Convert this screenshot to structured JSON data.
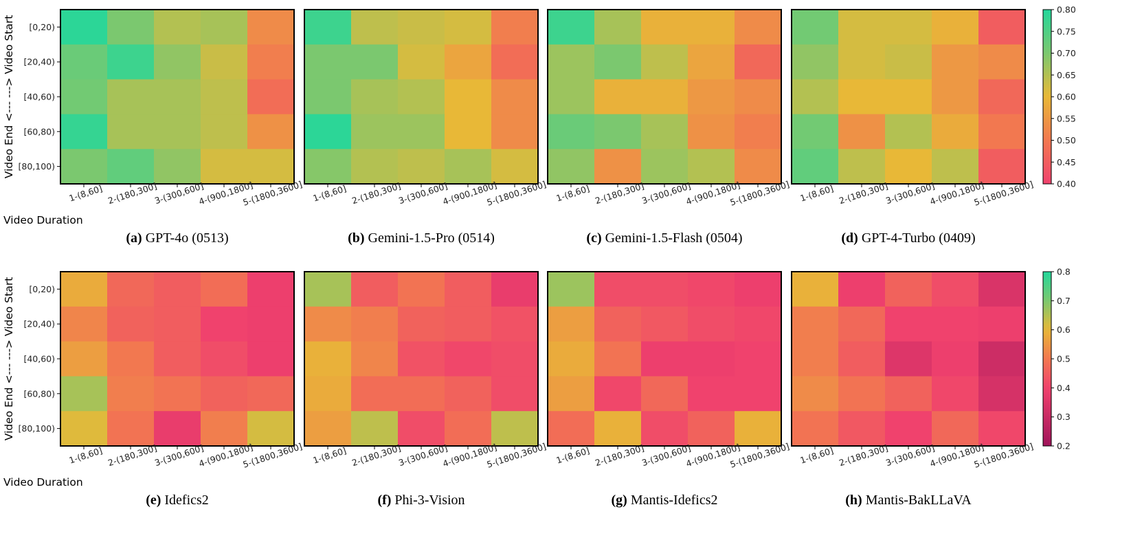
{
  "chart_data": {
    "type": "heatmap",
    "x_axis_label": "Video Duration",
    "y_axis_label": "Video End <--- ---> Video Start",
    "x_categories": [
      "1-(8,60]",
      "2-(180,300]",
      "3-(300,600]",
      "4-(900,1800]",
      "5-(1800,3600]"
    ],
    "y_categories": [
      "[0,20)",
      "[20,40)",
      "[40,60)",
      "[60,80)",
      "[80,100)"
    ],
    "colorbars": [
      {
        "row": 0,
        "vmin": 0.4,
        "vmax": 0.8,
        "ticks": [
          "0.80",
          "0.75",
          "0.70",
          "0.65",
          "0.60",
          "0.55",
          "0.50",
          "0.45",
          "0.40"
        ]
      },
      {
        "row": 1,
        "vmin": 0.2,
        "vmax": 0.8,
        "ticks": [
          "0.8",
          "0.7",
          "0.6",
          "0.5",
          "0.4",
          "0.3",
          "0.2"
        ]
      }
    ],
    "panels": [
      {
        "tag": "(a)",
        "title": "GPT-4o (0513)",
        "row": 0,
        "values": [
          [
            0.79,
            0.7,
            0.65,
            0.66,
            0.53
          ],
          [
            0.72,
            0.77,
            0.68,
            0.63,
            0.51
          ],
          [
            0.71,
            0.66,
            0.66,
            0.64,
            0.48
          ],
          [
            0.78,
            0.66,
            0.66,
            0.64,
            0.54
          ],
          [
            0.7,
            0.73,
            0.68,
            0.62,
            0.62
          ]
        ]
      },
      {
        "tag": "(b)",
        "title": "Gemini-1.5-Pro (0514)",
        "row": 0,
        "values": [
          [
            0.77,
            0.64,
            0.63,
            0.62,
            0.51
          ],
          [
            0.7,
            0.7,
            0.62,
            0.57,
            0.48
          ],
          [
            0.7,
            0.66,
            0.65,
            0.6,
            0.53
          ],
          [
            0.79,
            0.67,
            0.67,
            0.6,
            0.53
          ],
          [
            0.69,
            0.65,
            0.64,
            0.66,
            0.62
          ]
        ]
      },
      {
        "tag": "(c)",
        "title": "Gemini-1.5-Flash (0504)",
        "row": 0,
        "values": [
          [
            0.77,
            0.66,
            0.59,
            0.59,
            0.53
          ],
          [
            0.67,
            0.7,
            0.64,
            0.57,
            0.47
          ],
          [
            0.67,
            0.59,
            0.59,
            0.55,
            0.53
          ],
          [
            0.72,
            0.7,
            0.66,
            0.54,
            0.51
          ],
          [
            0.68,
            0.54,
            0.67,
            0.65,
            0.53
          ]
        ]
      },
      {
        "tag": "(d)",
        "title": "GPT-4-Turbo (0409)",
        "row": 0,
        "values": [
          [
            0.71,
            0.62,
            0.62,
            0.59,
            0.45
          ],
          [
            0.68,
            0.62,
            0.63,
            0.55,
            0.53
          ],
          [
            0.65,
            0.6,
            0.6,
            0.55,
            0.47
          ],
          [
            0.71,
            0.54,
            0.65,
            0.58,
            0.5
          ],
          [
            0.73,
            0.64,
            0.6,
            0.64,
            0.45
          ]
        ]
      },
      {
        "tag": "(e)",
        "title": "Idefics2",
        "row": 1,
        "values": [
          [
            0.58,
            0.47,
            0.45,
            0.48,
            0.39
          ],
          [
            0.52,
            0.46,
            0.45,
            0.4,
            0.39
          ],
          [
            0.56,
            0.5,
            0.45,
            0.42,
            0.39
          ],
          [
            0.66,
            0.51,
            0.49,
            0.46,
            0.47
          ],
          [
            0.61,
            0.49,
            0.38,
            0.51,
            0.62
          ]
        ]
      },
      {
        "tag": "(f)",
        "title": "Phi-3-Vision",
        "row": 1,
        "values": [
          [
            0.66,
            0.45,
            0.49,
            0.45,
            0.38
          ],
          [
            0.53,
            0.51,
            0.46,
            0.45,
            0.43
          ],
          [
            0.59,
            0.52,
            0.43,
            0.41,
            0.42
          ],
          [
            0.58,
            0.48,
            0.48,
            0.46,
            0.42
          ],
          [
            0.56,
            0.64,
            0.42,
            0.48,
            0.64
          ]
        ]
      },
      {
        "tag": "(g)",
        "title": "Mantis-Idefics2",
        "row": 1,
        "values": [
          [
            0.67,
            0.42,
            0.42,
            0.41,
            0.39
          ],
          [
            0.56,
            0.46,
            0.44,
            0.42,
            0.41
          ],
          [
            0.58,
            0.49,
            0.39,
            0.39,
            0.4
          ],
          [
            0.56,
            0.41,
            0.47,
            0.4,
            0.4
          ],
          [
            0.48,
            0.59,
            0.42,
            0.46,
            0.59
          ]
        ]
      },
      {
        "tag": "(h)",
        "title": "Mantis-BakLLaVA",
        "row": 1,
        "values": [
          [
            0.59,
            0.39,
            0.46,
            0.42,
            0.34
          ],
          [
            0.51,
            0.47,
            0.4,
            0.4,
            0.39
          ],
          [
            0.51,
            0.45,
            0.35,
            0.39,
            0.31
          ],
          [
            0.53,
            0.49,
            0.46,
            0.41,
            0.33
          ],
          [
            0.49,
            0.44,
            0.4,
            0.47,
            0.41
          ]
        ]
      }
    ]
  }
}
